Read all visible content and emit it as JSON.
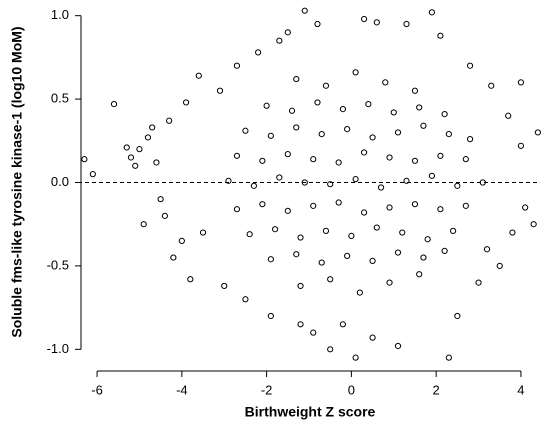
{
  "chart_data": {
    "type": "scatter",
    "x_label": "Birthweight Z score",
    "y_label": "Soluble fms-like tyrosine kinase-1 (log10 MoM)",
    "xlim": [
      -6.45,
      4.45
    ],
    "ylim": [
      -1.1,
      1.07
    ],
    "xticks": [
      -6,
      -4,
      -2,
      0,
      2,
      4
    ],
    "yticks": [
      {
        "value": -1,
        "label": "-1.0"
      },
      -0.5,
      {
        "value": 0,
        "label": "0.0"
      },
      0.5,
      {
        "value": 1,
        "label": "1.0"
      }
    ],
    "hline": 0,
    "color": "#000000",
    "x": [
      -6.3,
      -6.1,
      -5.6,
      -5.3,
      -5.2,
      -5.1,
      -5.0,
      -4.8,
      -4.7,
      -4.6,
      -4.5,
      -4.9,
      -4.4,
      -4.3,
      -4.2,
      -4.0,
      -3.9,
      -3.8,
      -3.6,
      -3.5,
      -3.1,
      -3.0,
      -2.7,
      -2.5,
      -2.2,
      -1.9,
      -1.7,
      -1.5,
      -1.2,
      -1.1,
      -0.9,
      -0.5,
      0.1,
      0.3,
      0.5,
      0.6,
      1.1,
      1.3,
      1.9,
      2.3,
      2.1,
      2.5,
      2.8,
      3.0,
      3.3,
      3.5,
      3.7,
      3.8,
      4.0,
      4.1,
      4.3,
      4.4,
      4.0,
      3.2,
      -0.8,
      -0.2,
      -1.3,
      -0.6,
      0.1,
      0.8,
      1.5,
      -2.0,
      -1.4,
      -0.8,
      -0.2,
      0.4,
      1.0,
      1.6,
      2.2,
      -2.5,
      -1.9,
      -1.3,
      -0.7,
      -0.1,
      0.5,
      1.1,
      1.7,
      2.3,
      2.8,
      -2.7,
      -2.1,
      -1.5,
      -0.9,
      -0.3,
      0.3,
      0.9,
      1.5,
      2.1,
      2.7,
      -2.9,
      -2.3,
      -1.7,
      -1.1,
      -0.5,
      0.1,
      0.7,
      1.3,
      1.9,
      2.5,
      3.1,
      -2.7,
      -2.1,
      -1.5,
      -0.9,
      -0.3,
      0.3,
      0.9,
      1.5,
      2.1,
      2.7,
      -2.4,
      -1.8,
      -1.2,
      -0.6,
      0.0,
      0.6,
      1.2,
      1.8,
      2.4,
      -1.9,
      -1.3,
      -0.7,
      -0.1,
      0.5,
      1.1,
      1.7,
      2.2,
      -1.2,
      -0.5,
      0.2,
      0.9,
      1.6
    ],
    "y": [
      0.14,
      0.05,
      0.47,
      0.21,
      0.15,
      0.1,
      0.2,
      0.27,
      0.33,
      0.12,
      -0.1,
      -0.25,
      -0.2,
      0.37,
      -0.45,
      -0.35,
      0.48,
      -0.58,
      0.64,
      -0.3,
      0.55,
      -0.62,
      0.7,
      -0.7,
      0.78,
      -0.8,
      0.85,
      0.9,
      -0.85,
      1.03,
      -0.9,
      -1.0,
      -1.05,
      0.98,
      -0.93,
      0.96,
      -0.98,
      0.95,
      1.02,
      -1.05,
      0.88,
      -0.8,
      0.7,
      -0.6,
      0.58,
      -0.5,
      0.4,
      -0.3,
      0.22,
      -0.15,
      -0.25,
      0.3,
      0.6,
      -0.4,
      0.95,
      -0.85,
      0.62,
      0.58,
      0.66,
      0.6,
      0.55,
      0.46,
      0.43,
      0.48,
      0.44,
      0.47,
      0.42,
      0.45,
      0.41,
      0.31,
      0.28,
      0.33,
      0.29,
      0.32,
      0.27,
      0.3,
      0.34,
      0.29,
      0.26,
      0.16,
      0.13,
      0.17,
      0.14,
      0.12,
      0.18,
      0.15,
      0.13,
      0.16,
      0.14,
      0.01,
      -0.02,
      0.03,
      0.0,
      -0.01,
      0.02,
      -0.03,
      0.01,
      0.04,
      -0.02,
      0.0,
      -0.16,
      -0.13,
      -0.17,
      -0.14,
      -0.12,
      -0.18,
      -0.15,
      -0.13,
      -0.16,
      -0.14,
      -0.31,
      -0.28,
      -0.33,
      -0.29,
      -0.32,
      -0.27,
      -0.3,
      -0.34,
      -0.29,
      -0.46,
      -0.43,
      -0.48,
      -0.44,
      -0.47,
      -0.42,
      -0.45,
      -0.41,
      -0.62,
      -0.58,
      -0.66,
      -0.6,
      -0.55
    ]
  }
}
